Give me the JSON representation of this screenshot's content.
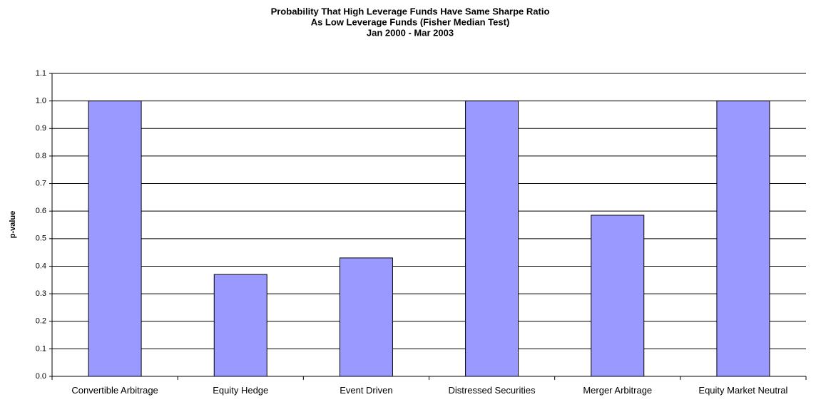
{
  "chart_data": {
    "type": "bar",
    "title": [
      "Probability That High Leverage Funds Have Same Sharpe Ratio",
      "As Low Leverage Funds (Fisher Median Test)",
      "Jan 2000 - Mar 2003"
    ],
    "y_label": "p-value",
    "categories": [
      "Convertible Arbitrage",
      "Equity Hedge",
      "Event Driven",
      "Distressed Securities",
      "Merger Arbitrage",
      "Equity Market Neutral"
    ],
    "values": [
      1.0,
      0.37,
      0.43,
      1.0,
      0.585,
      1.0
    ],
    "color": "#9999ff",
    "ylim": [
      0,
      1.1
    ],
    "yticks": [
      {
        "value": 0,
        "label": "0.0"
      },
      0.1,
      0.2,
      0.3,
      0.4,
      0.5,
      0.6,
      0.7,
      0.8,
      0.9,
      {
        "value": 1,
        "label": "1.0"
      },
      1.1
    ],
    "grid": true
  }
}
